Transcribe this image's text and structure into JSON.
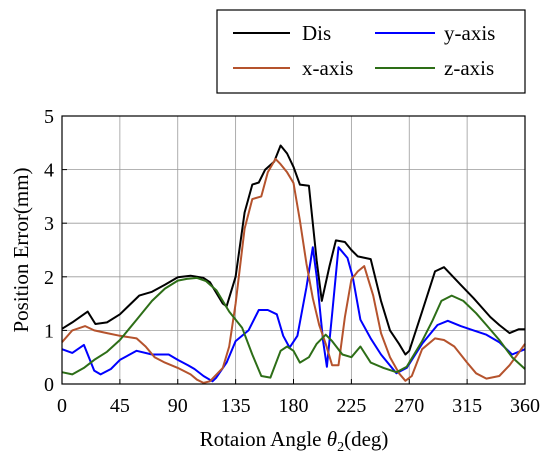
{
  "chart_data": {
    "type": "line",
    "title": "",
    "xlabel": "Rotaion Angle θ2(deg)",
    "xlabel_parts": {
      "prefix": "Rotaion Angle ",
      "symbol": "θ",
      "subscript": "2",
      "suffix": "(deg)"
    },
    "ylabel": "Position Error(mm)",
    "xlim": [
      0,
      360
    ],
    "ylim": [
      0,
      5
    ],
    "xticks": [
      0,
      45,
      90,
      135,
      180,
      225,
      270,
      315,
      360
    ],
    "yticks": [
      0,
      1,
      2,
      3,
      4,
      5
    ],
    "grid": true,
    "legend_position": "top-right",
    "legend": [
      "Dis",
      "y-axis",
      "x-axis",
      "z-axis"
    ],
    "series": [
      {
        "name": "Dis",
        "color": "#000000",
        "points": [
          [
            0,
            1.03
          ],
          [
            8,
            1.15
          ],
          [
            20,
            1.35
          ],
          [
            26,
            1.12
          ],
          [
            35,
            1.15
          ],
          [
            45,
            1.3
          ],
          [
            60,
            1.65
          ],
          [
            70,
            1.72
          ],
          [
            80,
            1.85
          ],
          [
            90,
            1.99
          ],
          [
            100,
            2.02
          ],
          [
            110,
            1.98
          ],
          [
            115,
            1.9
          ],
          [
            125,
            1.5
          ],
          [
            128,
            1.45
          ],
          [
            135,
            2.0
          ],
          [
            142,
            3.2
          ],
          [
            148,
            3.72
          ],
          [
            153,
            3.76
          ],
          [
            158,
            4.0
          ],
          [
            165,
            4.15
          ],
          [
            170,
            4.45
          ],
          [
            175,
            4.3
          ],
          [
            180,
            4.05
          ],
          [
            185,
            3.72
          ],
          [
            192,
            3.7
          ],
          [
            198,
            2.3
          ],
          [
            202,
            1.55
          ],
          [
            208,
            2.2
          ],
          [
            213,
            2.68
          ],
          [
            220,
            2.65
          ],
          [
            225,
            2.5
          ],
          [
            230,
            2.38
          ],
          [
            240,
            2.33
          ],
          [
            248,
            1.55
          ],
          [
            255,
            1.0
          ],
          [
            262,
            0.75
          ],
          [
            267,
            0.55
          ],
          [
            270,
            0.62
          ],
          [
            280,
            1.35
          ],
          [
            290,
            2.1
          ],
          [
            297,
            2.18
          ],
          [
            310,
            1.85
          ],
          [
            320,
            1.6
          ],
          [
            333,
            1.25
          ],
          [
            340,
            1.1
          ],
          [
            348,
            0.95
          ],
          [
            355,
            1.02
          ],
          [
            360,
            1.02
          ]
        ]
      },
      {
        "name": "y-axis",
        "color": "#0000ff",
        "points": [
          [
            0,
            0.65
          ],
          [
            8,
            0.58
          ],
          [
            17,
            0.73
          ],
          [
            25,
            0.25
          ],
          [
            30,
            0.18
          ],
          [
            38,
            0.28
          ],
          [
            45,
            0.45
          ],
          [
            58,
            0.62
          ],
          [
            70,
            0.55
          ],
          [
            83,
            0.55
          ],
          [
            90,
            0.45
          ],
          [
            98,
            0.35
          ],
          [
            103,
            0.28
          ],
          [
            110,
            0.15
          ],
          [
            117,
            0.05
          ],
          [
            120,
            0.12
          ],
          [
            128,
            0.4
          ],
          [
            135,
            0.8
          ],
          [
            145,
            1.0
          ],
          [
            153,
            1.38
          ],
          [
            160,
            1.38
          ],
          [
            167,
            1.3
          ],
          [
            172,
            0.9
          ],
          [
            177,
            0.68
          ],
          [
            183,
            0.9
          ],
          [
            190,
            1.8
          ],
          [
            195,
            2.55
          ],
          [
            198,
            2.0
          ],
          [
            203,
            0.8
          ],
          [
            206,
            0.32
          ],
          [
            210,
            1.3
          ],
          [
            215,
            2.55
          ],
          [
            222,
            2.35
          ],
          [
            226,
            2.0
          ],
          [
            232,
            1.2
          ],
          [
            240,
            0.85
          ],
          [
            248,
            0.55
          ],
          [
            260,
            0.2
          ],
          [
            268,
            0.3
          ],
          [
            280,
            0.75
          ],
          [
            292,
            1.1
          ],
          [
            300,
            1.18
          ],
          [
            310,
            1.08
          ],
          [
            320,
            1.0
          ],
          [
            330,
            0.92
          ],
          [
            340,
            0.78
          ],
          [
            350,
            0.55
          ],
          [
            360,
            0.65
          ]
        ]
      },
      {
        "name": "x-axis",
        "color": "#b5532d",
        "points": [
          [
            0,
            0.78
          ],
          [
            8,
            1.0
          ],
          [
            18,
            1.08
          ],
          [
            25,
            1.0
          ],
          [
            35,
            0.95
          ],
          [
            45,
            0.9
          ],
          [
            58,
            0.85
          ],
          [
            65,
            0.7
          ],
          [
            72,
            0.5
          ],
          [
            80,
            0.4
          ],
          [
            90,
            0.3
          ],
          [
            100,
            0.18
          ],
          [
            105,
            0.08
          ],
          [
            110,
            0.02
          ],
          [
            115,
            0.05
          ],
          [
            125,
            0.3
          ],
          [
            130,
            0.7
          ],
          [
            135,
            1.5
          ],
          [
            142,
            2.9
          ],
          [
            148,
            3.45
          ],
          [
            155,
            3.5
          ],
          [
            160,
            3.95
          ],
          [
            166,
            4.2
          ],
          [
            170,
            4.1
          ],
          [
            175,
            3.95
          ],
          [
            180,
            3.75
          ],
          [
            185,
            3.05
          ],
          [
            190,
            2.25
          ],
          [
            195,
            1.6
          ],
          [
            200,
            1.1
          ],
          [
            205,
            0.75
          ],
          [
            210,
            0.35
          ],
          [
            215,
            0.35
          ],
          [
            220,
            1.25
          ],
          [
            225,
            1.95
          ],
          [
            230,
            2.1
          ],
          [
            235,
            2.2
          ],
          [
            242,
            1.65
          ],
          [
            248,
            0.95
          ],
          [
            255,
            0.5
          ],
          [
            262,
            0.2
          ],
          [
            267,
            0.06
          ],
          [
            272,
            0.15
          ],
          [
            280,
            0.65
          ],
          [
            290,
            0.85
          ],
          [
            297,
            0.82
          ],
          [
            305,
            0.7
          ],
          [
            315,
            0.4
          ],
          [
            322,
            0.2
          ],
          [
            330,
            0.1
          ],
          [
            340,
            0.15
          ],
          [
            348,
            0.35
          ],
          [
            355,
            0.58
          ],
          [
            360,
            0.75
          ]
        ]
      },
      {
        "name": "z-axis",
        "color": "#2d6e17",
        "points": [
          [
            0,
            0.22
          ],
          [
            8,
            0.18
          ],
          [
            17,
            0.3
          ],
          [
            25,
            0.45
          ],
          [
            35,
            0.6
          ],
          [
            45,
            0.82
          ],
          [
            58,
            1.2
          ],
          [
            70,
            1.55
          ],
          [
            80,
            1.78
          ],
          [
            90,
            1.93
          ],
          [
            97,
            1.96
          ],
          [
            105,
            1.98
          ],
          [
            112,
            1.92
          ],
          [
            120,
            1.75
          ],
          [
            130,
            1.35
          ],
          [
            140,
            1.05
          ],
          [
            148,
            0.55
          ],
          [
            155,
            0.15
          ],
          [
            162,
            0.12
          ],
          [
            170,
            0.62
          ],
          [
            175,
            0.7
          ],
          [
            180,
            0.62
          ],
          [
            185,
            0.4
          ],
          [
            192,
            0.5
          ],
          [
            198,
            0.75
          ],
          [
            205,
            0.92
          ],
          [
            210,
            0.8
          ],
          [
            218,
            0.55
          ],
          [
            225,
            0.5
          ],
          [
            232,
            0.7
          ],
          [
            240,
            0.4
          ],
          [
            250,
            0.3
          ],
          [
            260,
            0.22
          ],
          [
            268,
            0.32
          ],
          [
            280,
            0.8
          ],
          [
            288,
            1.18
          ],
          [
            295,
            1.55
          ],
          [
            303,
            1.65
          ],
          [
            312,
            1.55
          ],
          [
            322,
            1.32
          ],
          [
            330,
            1.1
          ],
          [
            340,
            0.82
          ],
          [
            350,
            0.5
          ],
          [
            360,
            0.28
          ]
        ]
      }
    ]
  }
}
